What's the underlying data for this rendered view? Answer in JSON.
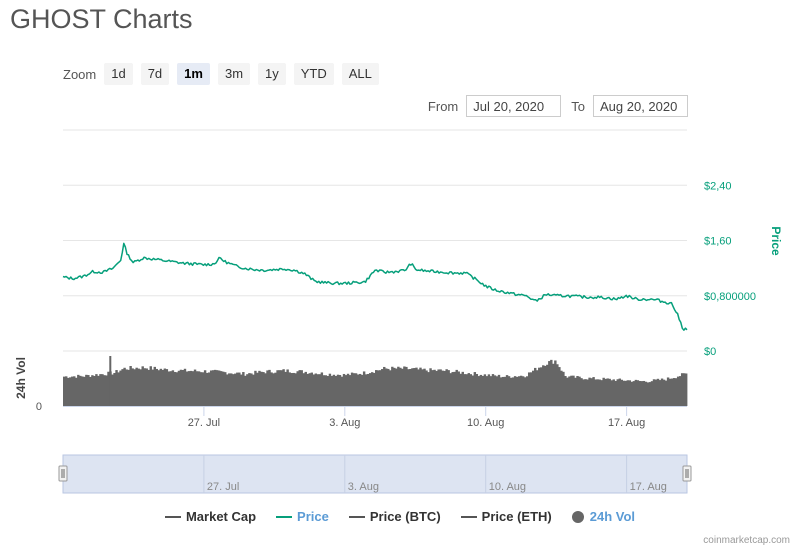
{
  "title": "GHOST Charts",
  "zoom": {
    "label": "Zoom",
    "buttons": [
      "1d",
      "7d",
      "1m",
      "3m",
      "1y",
      "YTD",
      "ALL"
    ],
    "active": "1m"
  },
  "range": {
    "from_label": "From",
    "from_value": "Jul 20, 2020",
    "to_label": "To",
    "to_value": "Aug 20, 2020"
  },
  "legend": {
    "market_cap": "Market Cap",
    "price": "Price",
    "price_btc": "Price (BTC)",
    "price_eth": "Price (ETH)",
    "vol": "24h Vol"
  },
  "credits": "coinmarketcap.com",
  "colors": {
    "price": "#069f7b",
    "volume": "#666666",
    "navigator_fill": "#dde4f2",
    "grid": "#e6e6e6"
  },
  "chart_data": {
    "type": "line",
    "x_start": "Jul 20, 2020",
    "x_end": "Aug 20, 2020",
    "x_ticks": [
      "27. Jul",
      "3. Aug",
      "10. Aug",
      "17. Aug"
    ],
    "navigator_ticks": [
      "27. Jul",
      "3. Aug",
      "10. Aug",
      "17. Aug"
    ],
    "y_axis": {
      "title": "Price",
      "ticks": [
        "$0",
        "$0,800000",
        "$1,60",
        "$2,40"
      ],
      "tick_values": [
        0,
        0.8,
        1.6,
        2.4
      ],
      "range": [
        0,
        3.2
      ]
    },
    "vol_axis": {
      "title": "24h Vol",
      "ticks": [
        "0"
      ]
    },
    "series": [
      {
        "name": "Price",
        "x_days": [
          0,
          0.5,
          1,
          1.5,
          2,
          2.5,
          2.9,
          3,
          3.2,
          3.5,
          4,
          4.5,
          5,
          5.5,
          6,
          6.5,
          7,
          7.5,
          7.8,
          8,
          8.5,
          9,
          9.5,
          10,
          10.5,
          11,
          11.5,
          12,
          12.5,
          13,
          13.5,
          14,
          14.5,
          15,
          15.5,
          16,
          16.5,
          17,
          17.3,
          17.5,
          18,
          18.5,
          19,
          19.5,
          20,
          20.5,
          21,
          21.5,
          22,
          22.5,
          23,
          23.5,
          24,
          24.5,
          25,
          25.5,
          26,
          26.5,
          27,
          27.5,
          28,
          28.5,
          29,
          29.5,
          30,
          30.2,
          30.5,
          30.8,
          31
        ],
        "values": [
          1.07,
          1.05,
          1.08,
          1.15,
          1.14,
          1.2,
          1.33,
          1.57,
          1.4,
          1.28,
          1.35,
          1.33,
          1.31,
          1.29,
          1.27,
          1.26,
          1.25,
          1.26,
          1.35,
          1.3,
          1.24,
          1.2,
          1.18,
          1.17,
          1.18,
          1.19,
          1.17,
          1.12,
          1.01,
          0.99,
          0.98,
          0.98,
          0.99,
          1.0,
          1.17,
          1.14,
          1.15,
          1.17,
          1.27,
          1.18,
          1.16,
          1.15,
          1.14,
          1.13,
          1.13,
          1.04,
          0.94,
          0.88,
          0.85,
          0.82,
          0.8,
          0.72,
          0.82,
          0.8,
          0.8,
          0.79,
          0.78,
          0.78,
          0.77,
          0.75,
          0.8,
          0.75,
          0.75,
          0.74,
          0.7,
          0.7,
          0.55,
          0.32,
          0.32
        ]
      },
      {
        "name": "24h Vol",
        "x_days": [
          0,
          1,
          2,
          2.5,
          3,
          4,
          5,
          6,
          7,
          8,
          9,
          10,
          11,
          12,
          13,
          14,
          15,
          16,
          17,
          18,
          19,
          20,
          21,
          22,
          23,
          24,
          24.5,
          25,
          26,
          27,
          28,
          29,
          30,
          31
        ],
        "values": [
          0.55,
          0.56,
          0.6,
          0.62,
          0.7,
          0.72,
          0.68,
          0.66,
          0.65,
          0.63,
          0.6,
          0.64,
          0.66,
          0.64,
          0.6,
          0.58,
          0.62,
          0.7,
          0.7,
          0.67,
          0.66,
          0.62,
          0.58,
          0.55,
          0.57,
          0.8,
          0.85,
          0.55,
          0.52,
          0.5,
          0.48,
          0.46,
          0.5,
          0.6
        ]
      }
    ]
  }
}
